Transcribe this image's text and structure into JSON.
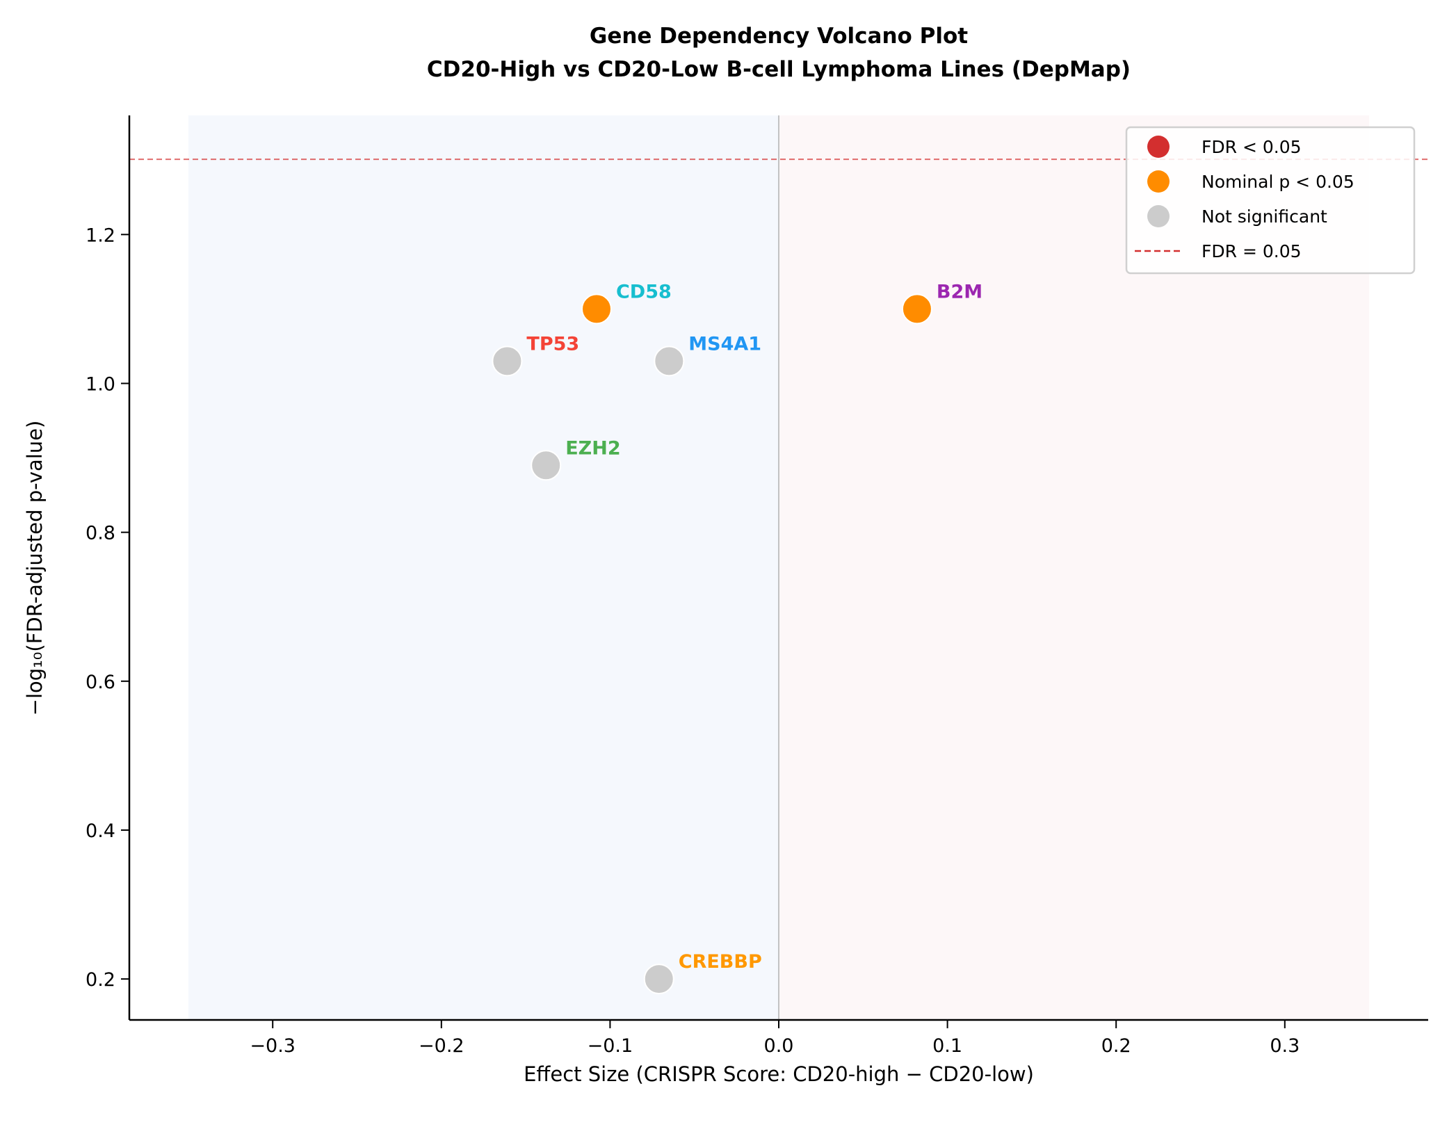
{
  "chart_data": {
    "type": "scatter",
    "title": "Gene Dependency Volcano Plot",
    "subtitle": "CD20-High vs CD20-Low B-cell Lymphoma Lines (DepMap)",
    "xlabel": "Effect Size (CRISPR Score: CD20-high − CD20-low)",
    "ylabel": "−log₁₀(FDR-adjusted p-value)",
    "xlim": [
      -0.385,
      0.385
    ],
    "ylim": [
      0.145,
      1.36
    ],
    "xticks": [
      -0.3,
      -0.2,
      -0.1,
      0.0,
      0.1,
      0.2,
      0.3
    ],
    "xtick_labels": [
      "−0.3",
      "−0.2",
      "−0.1",
      "0.0",
      "0.1",
      "0.2",
      "0.3"
    ],
    "yticks": [
      0.2,
      0.4,
      0.6,
      0.8,
      1.0,
      1.2
    ],
    "ytick_labels": [
      "0.2",
      "0.4",
      "0.6",
      "0.8",
      "1.0",
      "1.2"
    ],
    "grid": false,
    "shaded_regions": [
      {
        "x": [
          -0.35,
          0.0
        ],
        "color": "#e8f0fb"
      },
      {
        "x": [
          0.0,
          0.35
        ],
        "color": "#fbeef0"
      }
    ],
    "threshold_line": {
      "y": 1.301,
      "color": "#d32f2f",
      "style": "dashed",
      "label": "FDR = 0.05"
    },
    "zero_line": {
      "x": 0.0,
      "color": "#b0b0b0"
    },
    "points": [
      {
        "gene": "CD58",
        "x": -0.108,
        "y": 1.1,
        "category": "nominal",
        "label_color": "#17becf"
      },
      {
        "gene": "B2M",
        "x": 0.082,
        "y": 1.1,
        "category": "nominal",
        "label_color": "#9c27b0"
      },
      {
        "gene": "TP53",
        "x": -0.161,
        "y": 1.03,
        "category": "ns",
        "label_color": "#f44336"
      },
      {
        "gene": "MS4A1",
        "x": -0.065,
        "y": 1.03,
        "category": "ns",
        "label_color": "#2196f3"
      },
      {
        "gene": "EZH2",
        "x": -0.138,
        "y": 0.89,
        "category": "ns",
        "label_color": "#4caf50"
      },
      {
        "gene": "CREBBP",
        "x": -0.071,
        "y": 0.2,
        "category": "ns",
        "label_color": "#ff9800"
      }
    ],
    "category_colors": {
      "fdr": "#d32f2f",
      "nominal": "#ff8c00",
      "ns": "#cccccc"
    },
    "legend": {
      "position": "top-right",
      "entries": [
        {
          "label": "FDR < 0.05",
          "kind": "marker",
          "color": "#d32f2f"
        },
        {
          "label": "Nominal p < 0.05",
          "kind": "marker",
          "color": "#ff8c00"
        },
        {
          "label": "Not significant",
          "kind": "marker",
          "color": "#cccccc"
        },
        {
          "label": "FDR = 0.05",
          "kind": "dashed-line",
          "color": "#d32f2f"
        }
      ]
    }
  }
}
